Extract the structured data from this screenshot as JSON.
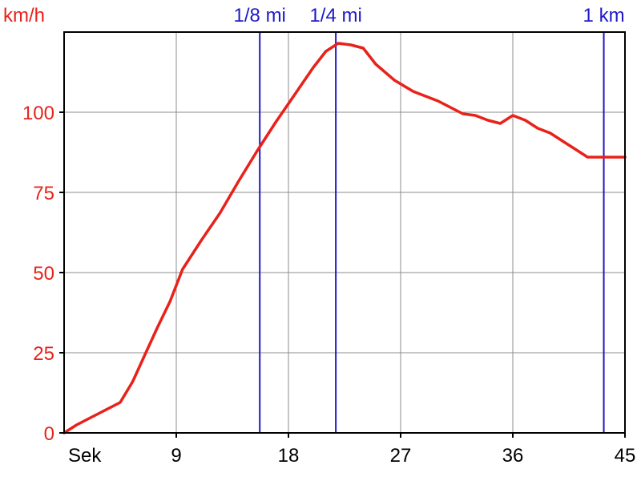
{
  "chart_data": {
    "type": "line",
    "y_unit_label": "km/h",
    "x_unit_label": "Sek",
    "xlim": [
      0,
      45
    ],
    "ylim": [
      0,
      125
    ],
    "x_ticks": [
      9,
      18,
      27,
      36,
      45
    ],
    "y_ticks": [
      0,
      25,
      50,
      75,
      100
    ],
    "grid": true,
    "series": [
      {
        "color": "#e8221a",
        "x": [
          0,
          1,
          2,
          3,
          4.5,
          5.5,
          6.5,
          7.5,
          8.5,
          9.5,
          11,
          12.5,
          14,
          15.5,
          17,
          18.5,
          20,
          21,
          22,
          23,
          24,
          25,
          26.5,
          28,
          30,
          32,
          33,
          34,
          35,
          36,
          37,
          38,
          39,
          40,
          41,
          42,
          43,
          44,
          45
        ],
        "y": [
          0,
          2.5,
          4.5,
          6.5,
          9.5,
          16,
          24.5,
          33,
          41,
          51,
          60,
          68.5,
          78.5,
          88,
          97,
          105.5,
          114,
          119,
          121.5,
          121,
          120,
          115,
          110,
          106.5,
          103.5,
          99.5,
          99,
          97.5,
          96.5,
          99,
          97.5,
          95,
          93.5,
          91,
          88.5,
          86,
          86,
          86,
          86
        ]
      }
    ],
    "markers": [
      {
        "label": "1/8 mi",
        "x": 15.7,
        "color": "#1f18c8"
      },
      {
        "label": "1/4 mi",
        "x": 21.8,
        "color": "#1f18c8"
      },
      {
        "label": "1 km",
        "x": 43.3,
        "color": "#1f18c8"
      }
    ],
    "colors": {
      "axis_text": "#e8221a",
      "x_text": "#000000",
      "marker": "#1f18c8",
      "grid": "#8c8c8c",
      "frame": "#000000"
    }
  }
}
